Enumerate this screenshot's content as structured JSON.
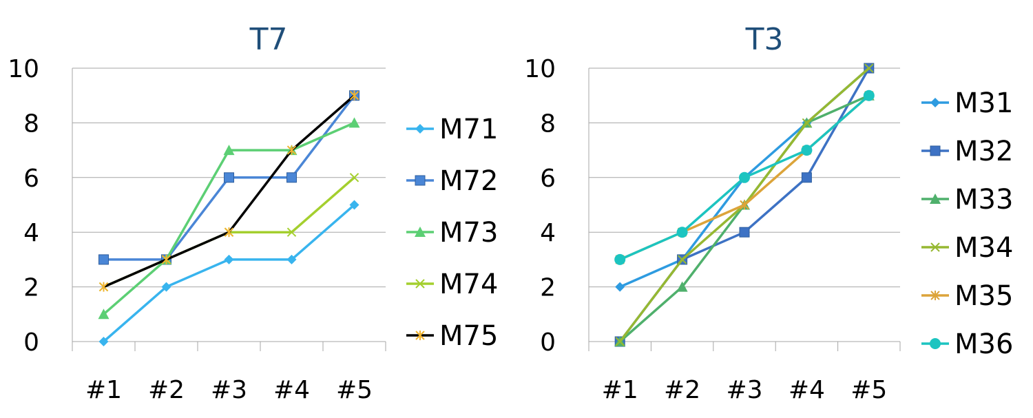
{
  "chart_data": [
    {
      "type": "line",
      "title": "T7",
      "categories": [
        "#1",
        "#2",
        "#3",
        "#4",
        "#5"
      ],
      "ylim": [
        0,
        10
      ],
      "yticks": [
        0,
        2,
        4,
        6,
        8,
        10
      ],
      "grid": true,
      "legend_position": "right",
      "series": [
        {
          "name": "M71",
          "values": [
            0,
            2,
            3,
            3,
            5
          ],
          "color": "#38b4ee",
          "marker": "diamond"
        },
        {
          "name": "M72",
          "values": [
            3,
            3,
            6,
            6,
            9
          ],
          "color": "#4a86d6",
          "marker": "square"
        },
        {
          "name": "M73",
          "values": [
            1,
            3,
            7,
            7,
            8
          ],
          "color": "#5ccf74",
          "marker": "triangle"
        },
        {
          "name": "M74",
          "values": [
            2,
            3,
            4,
            4,
            6
          ],
          "color": "#a4cf2e",
          "marker": "x"
        },
        {
          "name": "M75",
          "values": [
            2,
            3,
            4,
            7,
            9
          ],
          "color": "#000000",
          "marker": "star",
          "marker_color": "#f0b430"
        }
      ]
    },
    {
      "type": "line",
      "title": "T3",
      "categories": [
        "#1",
        "#2",
        "#3",
        "#4",
        "#5"
      ],
      "ylim": [
        0,
        10
      ],
      "yticks": [
        0,
        2,
        4,
        6,
        8,
        10
      ],
      "grid": true,
      "legend_position": "right",
      "series": [
        {
          "name": "M31",
          "values": [
            2,
            3,
            6,
            8,
            10
          ],
          "color": "#2e9be0",
          "marker": "diamond"
        },
        {
          "name": "M32",
          "values": [
            0,
            3,
            4,
            6,
            10
          ],
          "color": "#3d72c4",
          "marker": "square"
        },
        {
          "name": "M33",
          "values": [
            0,
            2,
            5,
            8,
            9
          ],
          "color": "#4fb06c",
          "marker": "triangle"
        },
        {
          "name": "M34",
          "values": [
            0,
            3,
            5,
            8,
            10
          ],
          "color": "#96b832",
          "marker": "x"
        },
        {
          "name": "M35",
          "values": [
            3,
            4,
            5,
            7,
            9
          ],
          "color": "#dca43a",
          "marker": "star"
        },
        {
          "name": "M36",
          "values": [
            3,
            4,
            6,
            7,
            9
          ],
          "color": "#1cc4c0",
          "marker": "circle"
        }
      ]
    }
  ]
}
